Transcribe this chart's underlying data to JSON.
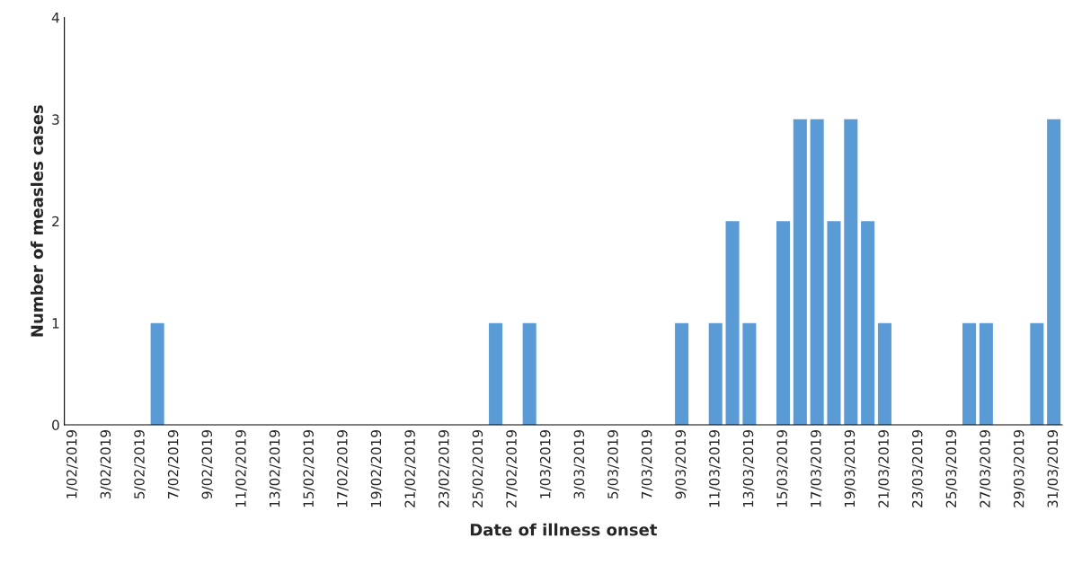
{
  "chart_data": {
    "type": "bar",
    "xlabel": "Date of illness onset",
    "ylabel": "Number of measles cases",
    "categories": [
      "1/02/2019",
      null,
      "3/02/2019",
      null,
      "5/02/2019",
      null,
      "7/02/2019",
      null,
      "9/02/2019",
      null,
      "11/02/2019",
      null,
      "13/02/2019",
      null,
      "15/02/2019",
      null,
      "17/02/2019",
      null,
      "19/02/2019",
      null,
      "21/02/2019",
      null,
      "23/02/2019",
      null,
      "25/02/2019",
      null,
      "27/02/2019",
      null,
      "1/03/2019",
      null,
      "3/03/2019",
      null,
      "5/03/2019",
      null,
      "7/03/2019",
      null,
      "9/03/2019",
      null,
      "11/03/2019",
      null,
      "13/03/2019",
      null,
      "15/03/2019",
      null,
      "17/03/2019",
      null,
      "19/03/2019",
      null,
      "21/03/2019",
      null,
      "23/03/2019",
      null,
      "25/03/2019",
      null,
      "27/03/2019",
      null,
      "29/03/2019",
      null,
      "31/03/2019"
    ],
    "values": [
      0,
      0,
      0,
      0,
      0,
      1,
      0,
      0,
      0,
      0,
      0,
      0,
      0,
      0,
      0,
      0,
      0,
      0,
      0,
      0,
      0,
      0,
      0,
      0,
      0,
      1,
      0,
      1,
      0,
      0,
      0,
      0,
      0,
      0,
      0,
      0,
      1,
      0,
      1,
      2,
      1,
      0,
      2,
      3,
      3,
      2,
      3,
      2,
      1,
      0,
      0,
      0,
      0,
      1,
      1,
      0,
      0,
      1,
      3
    ],
    "color": "#5b9bd5",
    "ylim": [
      0,
      4
    ],
    "yticks": [
      0,
      1,
      2,
      3,
      4
    ],
    "grid": false,
    "legend": false
  }
}
